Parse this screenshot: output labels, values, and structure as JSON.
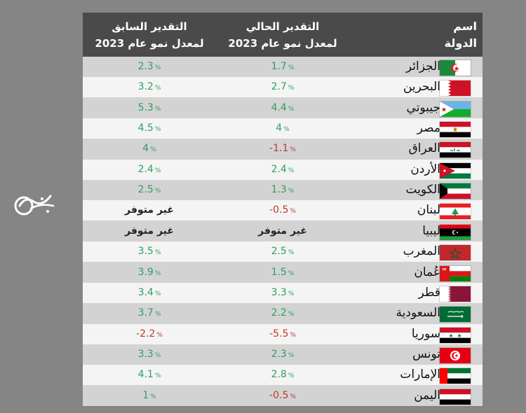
{
  "header": {
    "previous_line1": "التقدير السابق",
    "previous_line2": "لمعدل نمو عام 2023",
    "current_line1": "التقدير الحالي",
    "current_line2": "لمعدل نمو عام 2023",
    "country_line1": "اسم",
    "country_line2": "الدولة"
  },
  "rows": [
    {
      "country": "الجزائر",
      "current": "1.7",
      "current_pct": "%",
      "current_tone": "pos",
      "previous": "2.3",
      "previous_pct": "%",
      "previous_tone": "pos",
      "flag": "algeria-flag-icon"
    },
    {
      "country": "البحرين",
      "current": "2.7",
      "current_pct": "%",
      "current_tone": "pos",
      "previous": "3.2",
      "previous_pct": "%",
      "previous_tone": "pos",
      "flag": "bahrain-flag-icon"
    },
    {
      "country": "جيبوتي",
      "current": "4.4",
      "current_pct": "%",
      "current_tone": "pos",
      "previous": "5.3",
      "previous_pct": "%",
      "previous_tone": "pos",
      "flag": "djibouti-flag-icon"
    },
    {
      "country": "مصر",
      "current": "4",
      "current_pct": "%",
      "current_tone": "pos",
      "previous": "4.5",
      "previous_pct": "%",
      "previous_tone": "pos",
      "flag": "egypt-flag-icon"
    },
    {
      "country": "العراق",
      "current": "-1.1",
      "current_pct": "%",
      "current_tone": "neg",
      "previous": "4",
      "previous_pct": "%",
      "previous_tone": "pos",
      "flag": "iraq-flag-icon"
    },
    {
      "country": "الأردن",
      "current": "2.4",
      "current_pct": "%",
      "current_tone": "pos",
      "previous": "2.4",
      "previous_pct": "%",
      "previous_tone": "pos",
      "flag": "jordan-flag-icon"
    },
    {
      "country": "الكويت",
      "current": "1.3",
      "current_pct": "%",
      "current_tone": "pos",
      "previous": "2.5",
      "previous_pct": "%",
      "previous_tone": "pos",
      "flag": "kuwait-flag-icon"
    },
    {
      "country": "لبنان",
      "current": "-0.5",
      "current_pct": "%",
      "current_tone": "neg",
      "previous": "غير متوفر",
      "previous_pct": "",
      "previous_tone": "na",
      "flag": "lebanon-flag-icon"
    },
    {
      "country": "ليبيا",
      "current": "غير متوفر",
      "current_pct": "",
      "current_tone": "na",
      "previous": "غير متوفر",
      "previous_pct": "",
      "previous_tone": "na",
      "flag": "libya-flag-icon"
    },
    {
      "country": "المغرب",
      "current": "2.5",
      "current_pct": "%",
      "current_tone": "pos",
      "previous": "3.5",
      "previous_pct": "%",
      "previous_tone": "pos",
      "flag": "morocco-flag-icon"
    },
    {
      "country": "عُمان",
      "current": "1.5",
      "current_pct": "%",
      "current_tone": "pos",
      "previous": "3.9",
      "previous_pct": "%",
      "previous_tone": "pos",
      "flag": "oman-flag-icon"
    },
    {
      "country": "قطر",
      "current": "3.3",
      "current_pct": "%",
      "current_tone": "pos",
      "previous": "3.4",
      "previous_pct": "%",
      "previous_tone": "pos",
      "flag": "qatar-flag-icon"
    },
    {
      "country": "السعودية",
      "current": "2.2",
      "current_pct": "%",
      "current_tone": "pos",
      "previous": "3.7",
      "previous_pct": "%",
      "previous_tone": "pos",
      "flag": "saudi-flag-icon"
    },
    {
      "country": "سوريا",
      "current": "-5.5",
      "current_pct": "%",
      "current_tone": "neg",
      "previous": "-2.2",
      "previous_pct": "%",
      "previous_tone": "neg",
      "flag": "syria-flag-icon"
    },
    {
      "country": "تونس",
      "current": "2.3",
      "current_pct": "%",
      "current_tone": "pos",
      "previous": "3.3",
      "previous_pct": "%",
      "previous_tone": "pos",
      "flag": "tunisia-flag-icon"
    },
    {
      "country": "الإمارات",
      "current": "2.8",
      "current_pct": "%",
      "current_tone": "pos",
      "previous": "4.1",
      "previous_pct": "%",
      "previous_tone": "pos",
      "flag": "uae-flag-icon"
    },
    {
      "country": "اليمن",
      "current": "-0.5",
      "current_pct": "%",
      "current_tone": "neg",
      "previous": "1",
      "previous_pct": "%",
      "previous_tone": "pos",
      "flag": "yemen-flag-icon"
    }
  ],
  "logo": {
    "icon": "al-mayadeen-logo-icon"
  },
  "colors": {
    "positive": "#2f9e61",
    "negative": "#c0392b",
    "header_bg": "#4a4a4a",
    "page_bg": "#858585"
  }
}
